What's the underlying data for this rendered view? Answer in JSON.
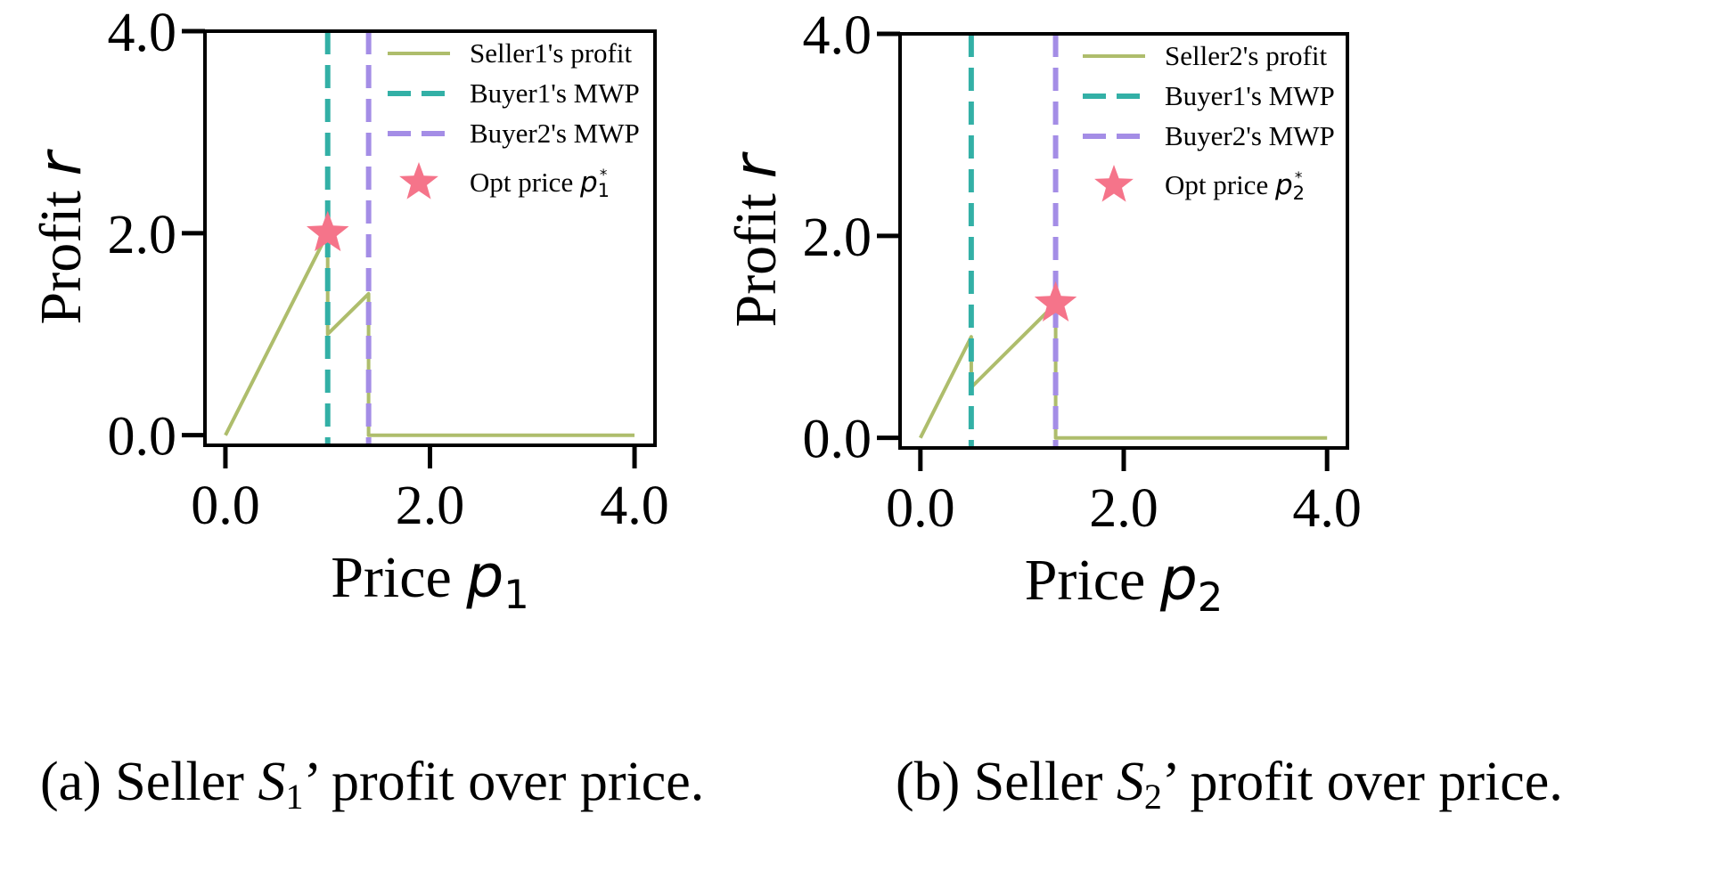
{
  "chart_data": [
    {
      "type": "line",
      "xlabel": "Price",
      "xlabel_math": "p",
      "xlabel_sub": "1",
      "ylabel": "Profit",
      "ylabel_math": "r",
      "xlim": [
        -0.2,
        4.2
      ],
      "ylim": [
        -0.1,
        4.0
      ],
      "xticks": [
        0.0,
        2.0,
        4.0
      ],
      "xtick_labels": [
        "0.0",
        "2.0",
        "4.0"
      ],
      "yticks": [
        0.0,
        2.0,
        4.0
      ],
      "ytick_labels": [
        "0.0",
        "2.0",
        "4.0"
      ],
      "grid": false,
      "legend_position": "top-right",
      "series": [
        {
          "name": "Seller1's profit",
          "kind": "line",
          "color": "#aebd6c",
          "x": [
            0.0,
            1.0,
            1.0,
            1.4,
            1.4,
            4.0
          ],
          "y": [
            0.0,
            2.0,
            1.0,
            1.4,
            0.0,
            0.0
          ]
        },
        {
          "name": "Buyer1's MWP",
          "kind": "vline",
          "color": "#33b0a6",
          "x": 1.0
        },
        {
          "name": "Buyer2's MWP",
          "kind": "vline",
          "color": "#a48de6",
          "x": 1.4
        },
        {
          "name": "Opt price",
          "name_math": "p",
          "name_sub": "1",
          "name_sup": "*",
          "kind": "star",
          "color": "#f5748a",
          "x": 1.0,
          "y": 2.0
        }
      ],
      "caption": {
        "prefix": "(a) Seller ",
        "math": "S",
        "sub": "1",
        "suffix": "’ profit over price."
      }
    },
    {
      "type": "line",
      "xlabel": "Price",
      "xlabel_math": "p",
      "xlabel_sub": "2",
      "ylabel": "Profit",
      "ylabel_math": "r",
      "xlim": [
        -0.2,
        4.2
      ],
      "ylim": [
        -0.1,
        4.0
      ],
      "xticks": [
        0.0,
        2.0,
        4.0
      ],
      "xtick_labels": [
        "0.0",
        "2.0",
        "4.0"
      ],
      "yticks": [
        0.0,
        2.0,
        4.0
      ],
      "ytick_labels": [
        "0.0",
        "2.0",
        "4.0"
      ],
      "grid": false,
      "legend_position": "top-right",
      "series": [
        {
          "name": "Seller2's profit",
          "kind": "line",
          "color": "#aebd6c",
          "x": [
            0.0,
            0.5,
            0.5,
            1.33,
            1.33,
            4.0
          ],
          "y": [
            0.0,
            1.0,
            0.5,
            1.33,
            0.0,
            0.0
          ]
        },
        {
          "name": "Buyer1's MWP",
          "kind": "vline",
          "color": "#33b0a6",
          "x": 0.5
        },
        {
          "name": "Buyer2's MWP",
          "kind": "vline",
          "color": "#a48de6",
          "x": 1.33
        },
        {
          "name": "Opt price",
          "name_math": "p",
          "name_sub": "2",
          "name_sup": "*",
          "kind": "star",
          "color": "#f5748a",
          "x": 1.33,
          "y": 1.33
        }
      ],
      "caption": {
        "prefix": "(b) Seller ",
        "math": "S",
        "sub": "2",
        "suffix": "’ profit over price."
      }
    }
  ]
}
